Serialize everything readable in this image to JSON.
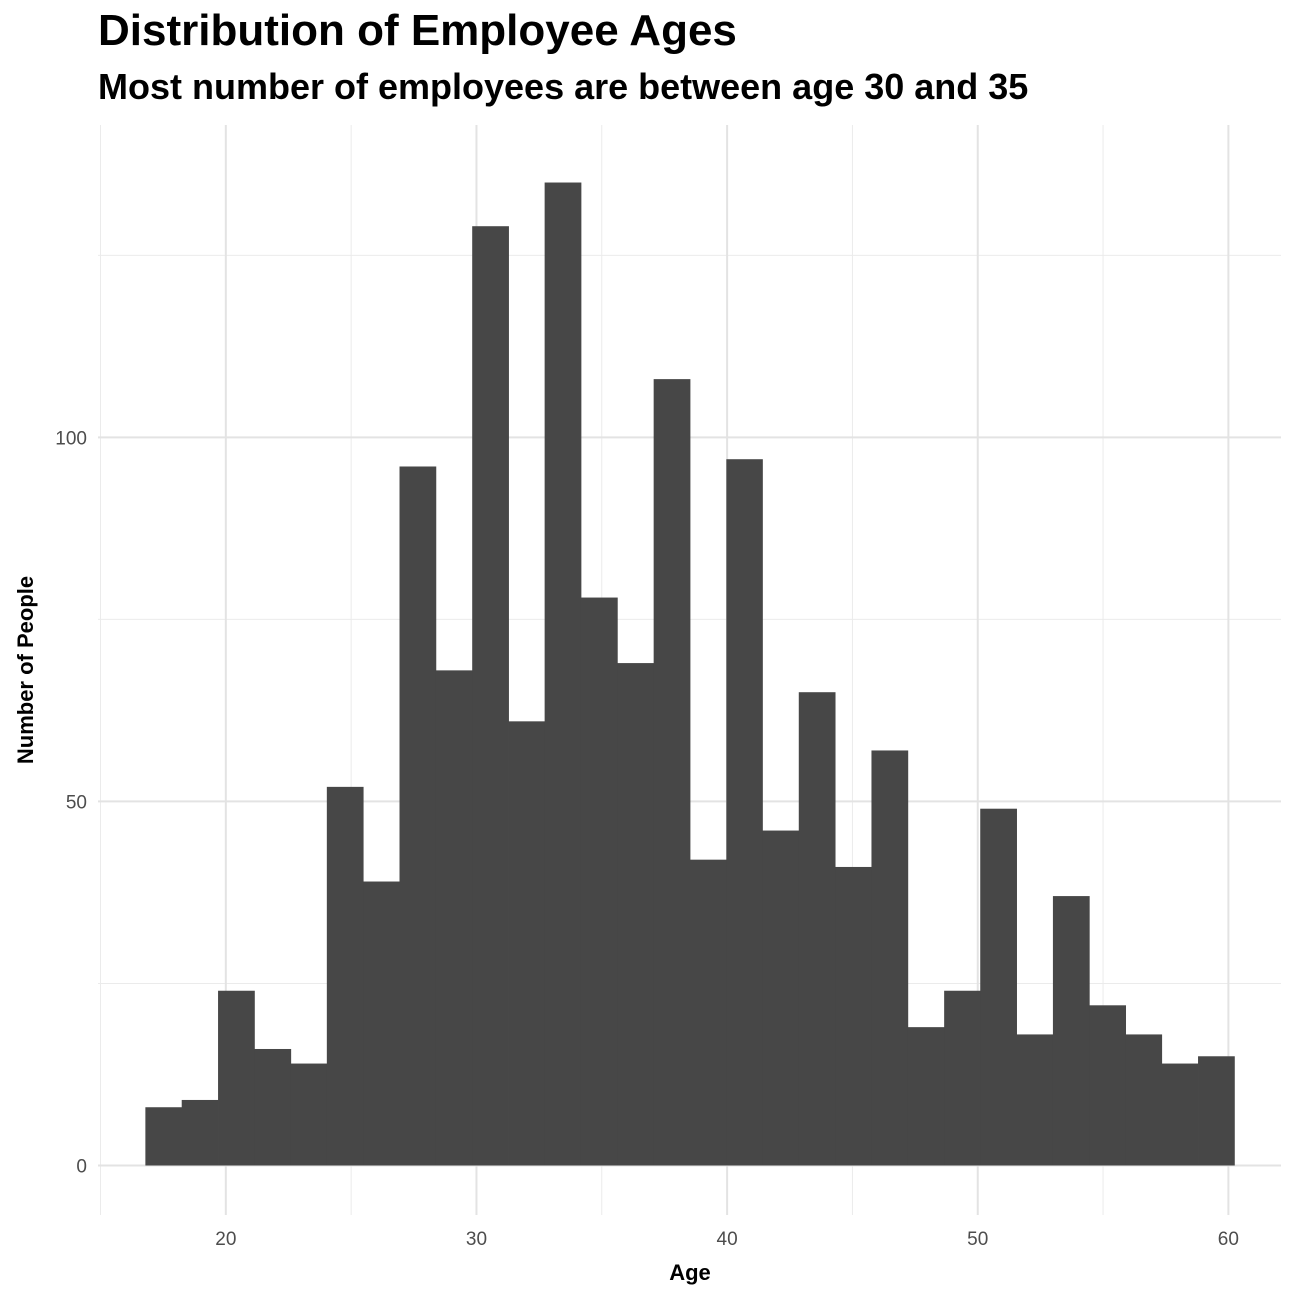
{
  "chart_data": {
    "type": "bar",
    "subtype": "histogram",
    "title": "Distribution of Employee Ages",
    "subtitle": "Most number of employees are between age 30 and 35",
    "xlabel": "Age",
    "ylabel": "Number of People",
    "xlim": [
      14.9,
      62.1
    ],
    "ylim": [
      -6.8,
      142.9
    ],
    "x_ticks": [
      20,
      30,
      40,
      50,
      60
    ],
    "y_ticks": [
      0,
      50,
      100
    ],
    "grid": true,
    "bar_color": "#474747",
    "bin_width": 1.4483,
    "bins": [
      {
        "x0": 16.79,
        "x1": 18.24,
        "count": 8
      },
      {
        "x0": 18.24,
        "x1": 19.69,
        "count": 9
      },
      {
        "x0": 19.69,
        "x1": 21.14,
        "count": 24
      },
      {
        "x0": 21.14,
        "x1": 22.59,
        "count": 16
      },
      {
        "x0": 22.59,
        "x1": 24.03,
        "count": 14
      },
      {
        "x0": 24.03,
        "x1": 25.48,
        "count": 52
      },
      {
        "x0": 25.48,
        "x1": 26.93,
        "count": 39
      },
      {
        "x0": 26.93,
        "x1": 28.38,
        "count": 96
      },
      {
        "x0": 28.38,
        "x1": 29.83,
        "count": 68
      },
      {
        "x0": 29.83,
        "x1": 31.28,
        "count": 129
      },
      {
        "x0": 31.28,
        "x1": 32.72,
        "count": 61
      },
      {
        "x0": 32.72,
        "x1": 34.17,
        "count": 135
      },
      {
        "x0": 34.17,
        "x1": 35.62,
        "count": 78
      },
      {
        "x0": 35.62,
        "x1": 37.07,
        "count": 69
      },
      {
        "x0": 37.07,
        "x1": 38.52,
        "count": 108
      },
      {
        "x0": 38.52,
        "x1": 39.97,
        "count": 42
      },
      {
        "x0": 39.97,
        "x1": 41.41,
        "count": 97
      },
      {
        "x0": 41.41,
        "x1": 42.86,
        "count": 46
      },
      {
        "x0": 42.86,
        "x1": 44.31,
        "count": 65
      },
      {
        "x0": 44.31,
        "x1": 45.76,
        "count": 41
      },
      {
        "x0": 45.76,
        "x1": 47.21,
        "count": 57
      },
      {
        "x0": 47.21,
        "x1": 48.66,
        "count": 19
      },
      {
        "x0": 48.66,
        "x1": 50.1,
        "count": 24
      },
      {
        "x0": 50.1,
        "x1": 51.55,
        "count": 49
      },
      {
        "x0": 51.55,
        "x1": 53.0,
        "count": 18
      },
      {
        "x0": 53.0,
        "x1": 54.45,
        "count": 37
      },
      {
        "x0": 54.45,
        "x1": 55.9,
        "count": 22
      },
      {
        "x0": 55.9,
        "x1": 57.34,
        "count": 18
      },
      {
        "x0": 57.34,
        "x1": 58.79,
        "count": 14
      },
      {
        "x0": 58.79,
        "x1": 60.24,
        "count": 15
      }
    ]
  }
}
